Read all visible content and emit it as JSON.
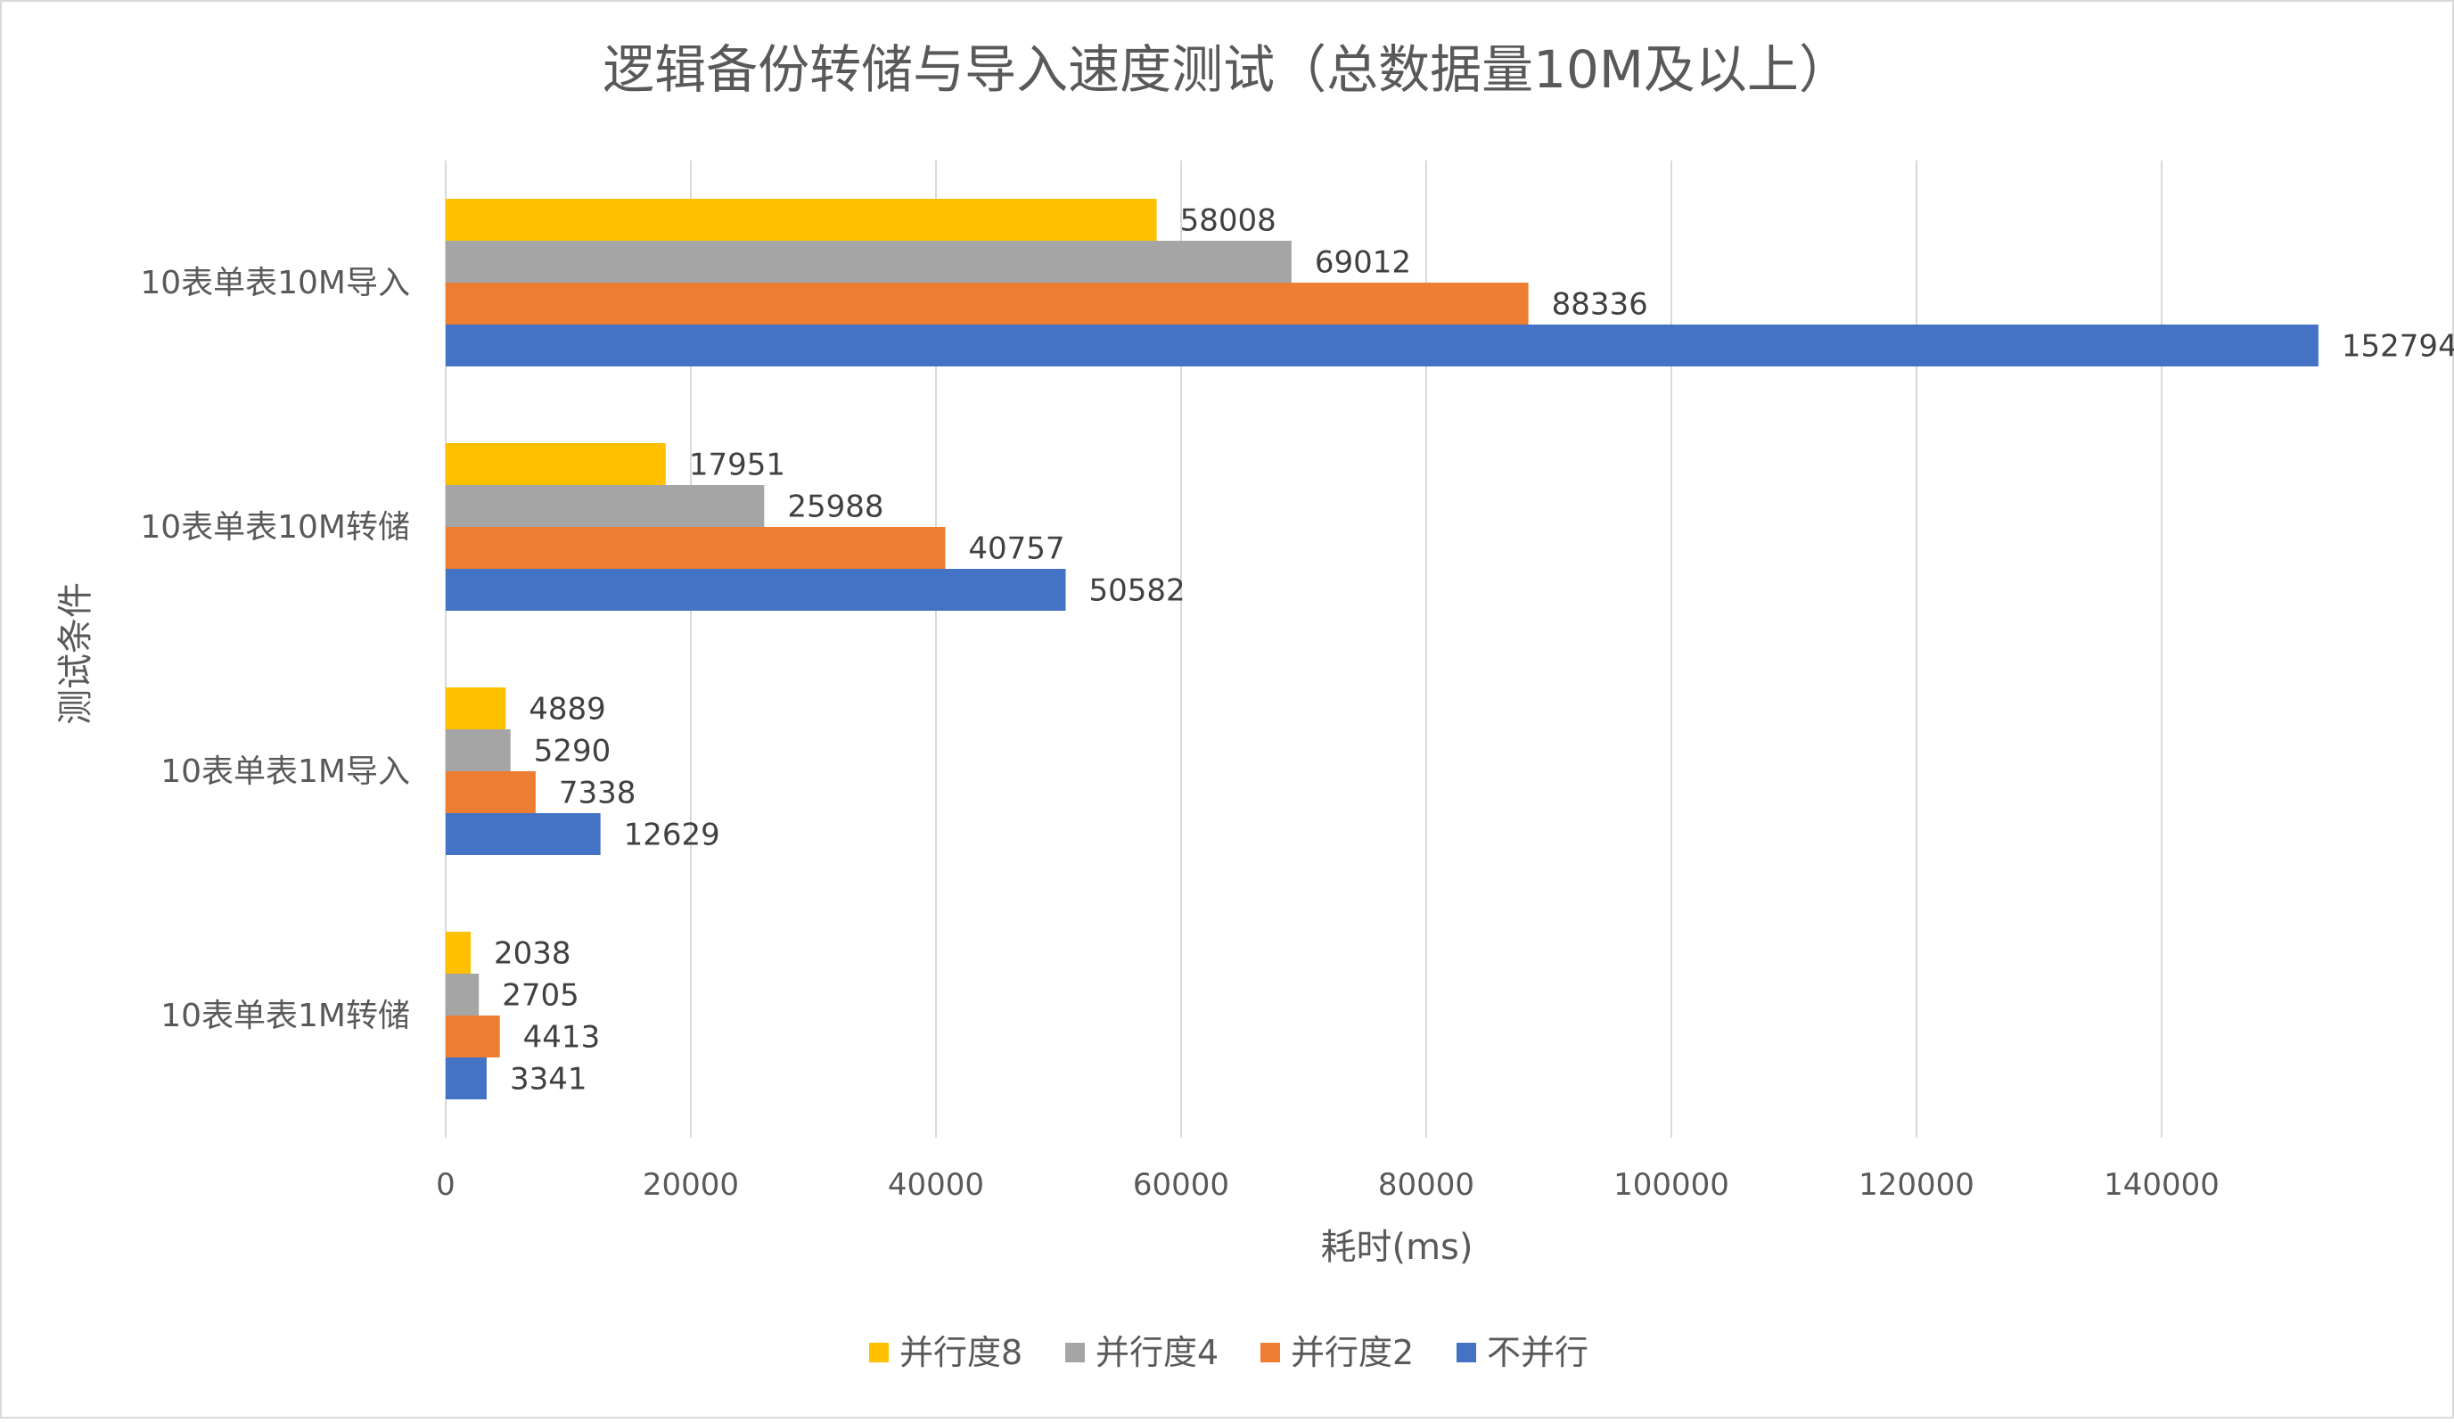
{
  "chart_data": {
    "type": "bar",
    "orientation": "horizontal",
    "title": "逻辑备份转储与导入速度测试（总数据量10M及以上）",
    "xlabel": "耗时(ms)",
    "ylabel": "测试条件",
    "categories": [
      "10表单表10M导入",
      "10表单表10M转储",
      "10表单表1M导入",
      "10表单表1M转储"
    ],
    "xlim": [
      0,
      160000
    ],
    "xticks": [
      0,
      20000,
      40000,
      60000,
      80000,
      100000,
      120000,
      140000
    ],
    "xtick_labels": [
      "0",
      "20000",
      "40000",
      "60000",
      "80000",
      "100000",
      "120000",
      "140000"
    ],
    "grid": true,
    "legend_position": "bottom",
    "series": [
      {
        "name": "并行度8",
        "color": "#FFC000",
        "values": [
          58008,
          17951,
          4889,
          2038
        ],
        "labels": [
          "58008",
          "17951",
          "4889",
          "2038"
        ]
      },
      {
        "name": "并行度4",
        "color": "#A5A5A5",
        "values": [
          69012,
          25988,
          5290,
          2705
        ],
        "labels": [
          "69012",
          "25988",
          "5290",
          "2705"
        ]
      },
      {
        "name": "并行度2",
        "color": "#ED7D31",
        "values": [
          88336,
          40757,
          7338,
          4413
        ],
        "labels": [
          "88336",
          "40757",
          "7338",
          "4413"
        ]
      },
      {
        "name": "不并行",
        "color": "#4472C4",
        "values": [
          152794,
          50582,
          12629,
          3341
        ],
        "labels": [
          "152794",
          "50582",
          "12629",
          "3341"
        ]
      }
    ]
  }
}
